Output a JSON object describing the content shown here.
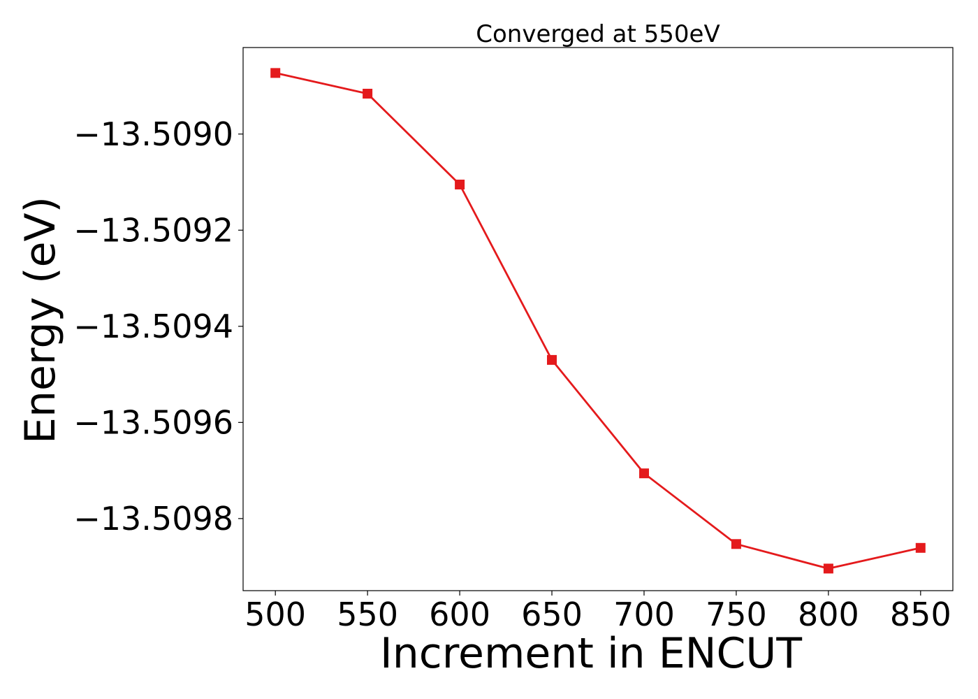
{
  "chart_data": {
    "type": "line",
    "title": "Converged at 550eV",
    "xlabel": "Increment in ENCUT",
    "ylabel": "Energy (eV)",
    "xlim": [
      482.5,
      867.5
    ],
    "ylim": [
      -13.50995,
      -13.50882
    ],
    "x_ticks": [
      500,
      550,
      600,
      650,
      700,
      750,
      800,
      850
    ],
    "x_tick_labels": [
      "500",
      "550",
      "600",
      "650",
      "700",
      "750",
      "800",
      "850"
    ],
    "y_ticks": [
      -13.509,
      -13.5092,
      -13.5094,
      -13.5096,
      -13.5098
    ],
    "y_tick_labels": [
      "−13.5090",
      "−13.5092",
      "−13.5094",
      "−13.5096",
      "−13.5098"
    ],
    "grid": false,
    "series": [
      {
        "color": "#e41a1c",
        "marker": "square",
        "x": [
          500,
          550,
          600,
          650,
          700,
          750,
          800,
          850
        ],
        "y": [
          -13.508873,
          -13.508916,
          -13.509105,
          -13.50947,
          -13.509706,
          -13.509853,
          -13.509904,
          -13.509861
        ]
      }
    ]
  }
}
